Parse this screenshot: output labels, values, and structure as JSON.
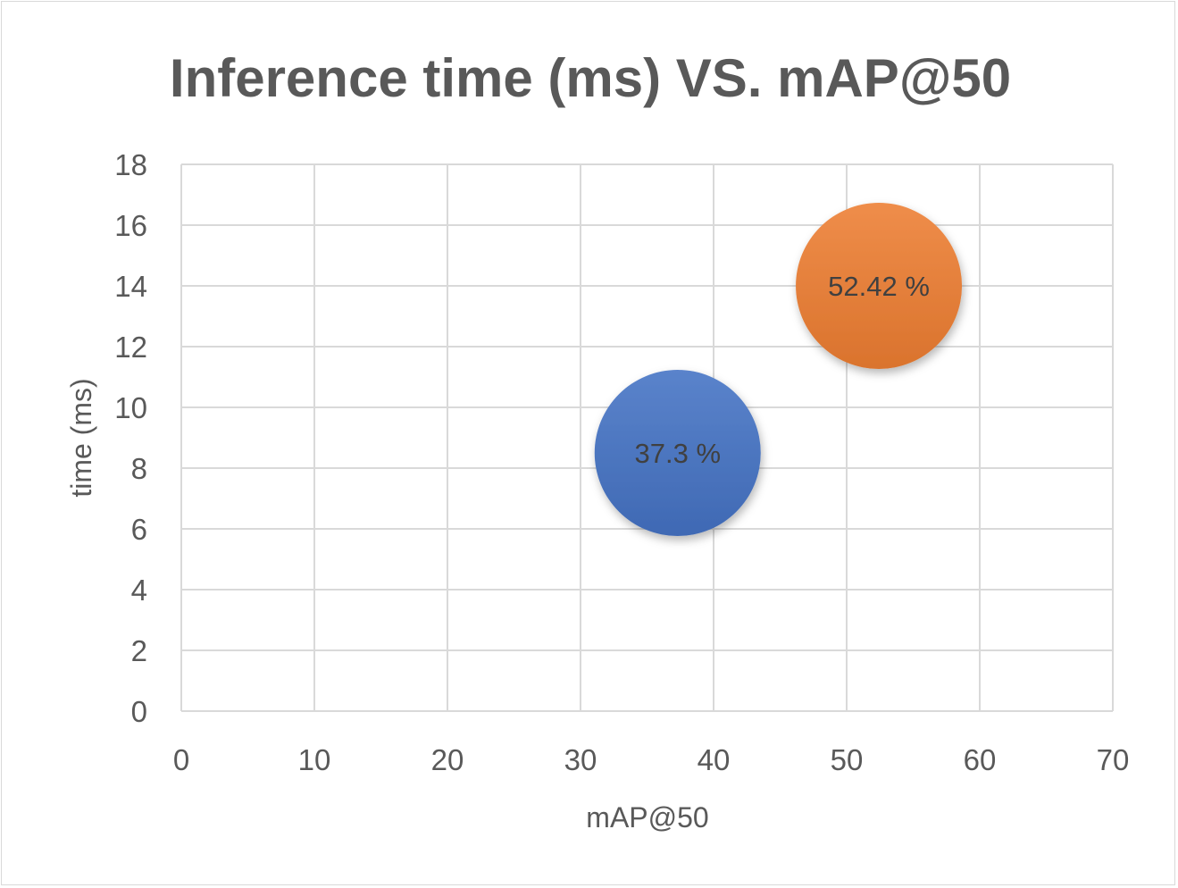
{
  "chart_data": {
    "type": "scatter",
    "title": "Inference time (ms) VS. mAP@50",
    "xlabel": "mAP@50",
    "ylabel": "time (ms)",
    "xlim": [
      0,
      70
    ],
    "ylim": [
      0,
      18
    ],
    "xticks": [
      0,
      10,
      20,
      30,
      40,
      50,
      60,
      70
    ],
    "yticks": [
      0,
      2,
      4,
      6,
      8,
      10,
      12,
      14,
      16,
      18
    ],
    "grid": true,
    "legend": "none",
    "points": [
      {
        "x": 37.3,
        "y": 8.5,
        "label": "37.3 %",
        "color": "#4472C4"
      },
      {
        "x": 52.42,
        "y": 14,
        "label": "52.42 %",
        "color": "#ED7D31"
      }
    ]
  }
}
